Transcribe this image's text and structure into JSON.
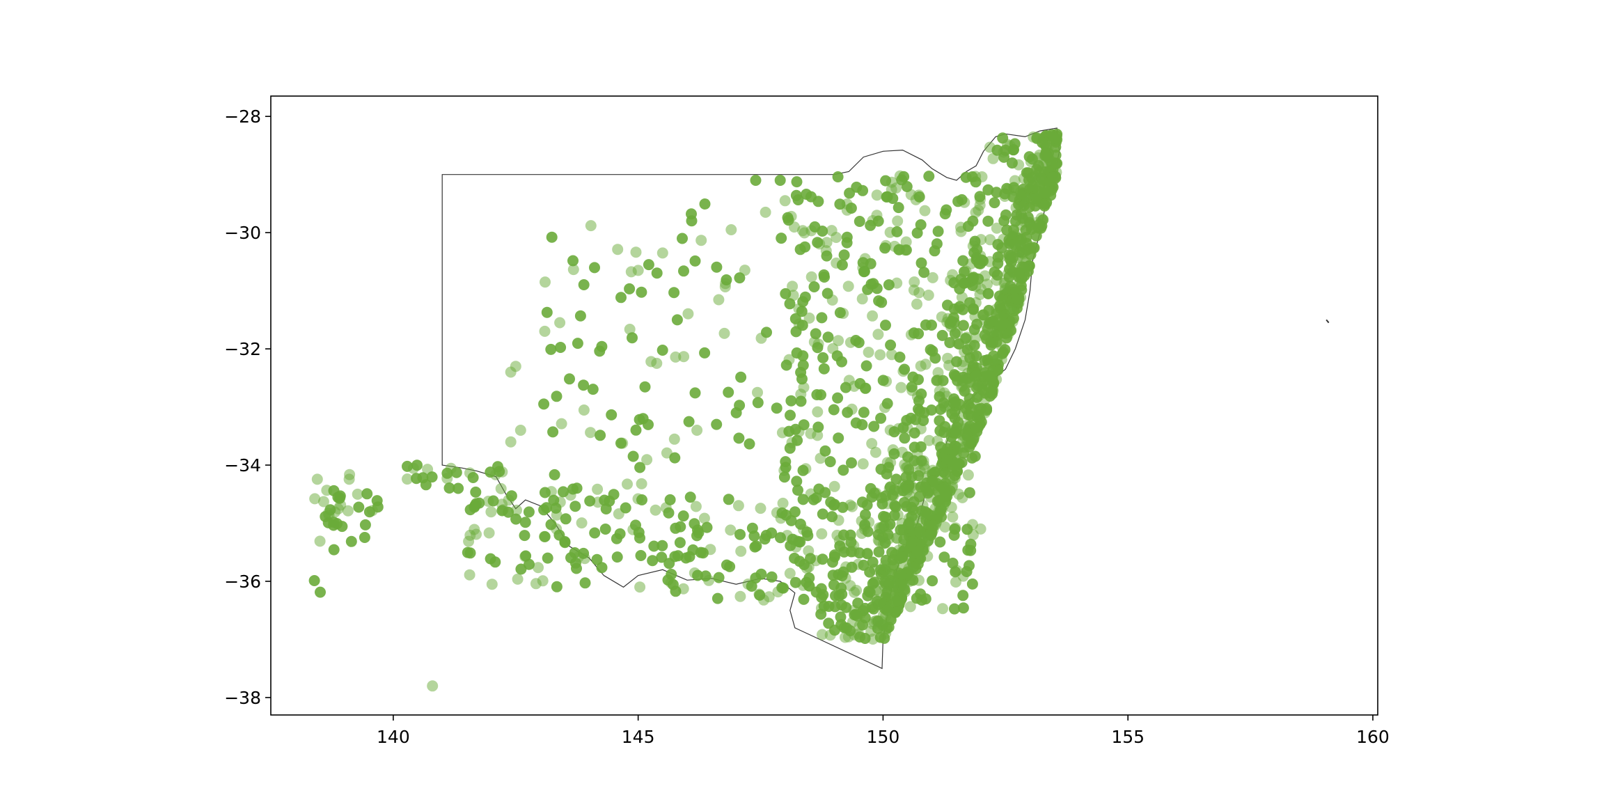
{
  "chart_data": {
    "type": "scatter",
    "title": "",
    "xlabel": "",
    "ylabel": "",
    "xlim": [
      137.5,
      160.1
    ],
    "ylim": [
      -38.3,
      -27.65
    ],
    "x_ticks": [
      140,
      145,
      150,
      155,
      160
    ],
    "y_ticks": [
      -28,
      -30,
      -32,
      -34,
      -36,
      -38
    ],
    "x_tick_labels": [
      "140",
      "145",
      "150",
      "155",
      "160"
    ],
    "y_tick_labels": [
      "−28",
      "−30",
      "−32",
      "−34",
      "−36",
      "−38"
    ],
    "grid": false,
    "legend": "none",
    "point_color": "#6aab3a",
    "boundary_color": "#333333",
    "boundary": [
      [
        141.0,
        -29.0
      ],
      [
        149.0,
        -29.0
      ],
      [
        149.3,
        -28.95
      ],
      [
        149.6,
        -28.7
      ],
      [
        150.0,
        -28.6
      ],
      [
        150.4,
        -28.58
      ],
      [
        150.8,
        -28.75
      ],
      [
        151.0,
        -28.9
      ],
      [
        151.3,
        -29.05
      ],
      [
        151.5,
        -29.1
      ],
      [
        151.7,
        -28.95
      ],
      [
        151.9,
        -28.85
      ],
      [
        152.05,
        -28.6
      ],
      [
        152.3,
        -28.35
      ],
      [
        152.5,
        -28.3
      ],
      [
        152.9,
        -28.35
      ],
      [
        153.2,
        -28.25
      ],
      [
        153.55,
        -28.2
      ],
      [
        153.6,
        -28.6
      ],
      [
        153.5,
        -29.0
      ],
      [
        153.35,
        -29.4
      ],
      [
        153.2,
        -30.0
      ],
      [
        153.05,
        -30.5
      ],
      [
        153.0,
        -31.0
      ],
      [
        152.9,
        -31.5
      ],
      [
        152.7,
        -32.0
      ],
      [
        152.5,
        -32.35
      ],
      [
        152.0,
        -32.7
      ],
      [
        151.6,
        -33.0
      ],
      [
        151.3,
        -33.6
      ],
      [
        151.2,
        -34.0
      ],
      [
        150.9,
        -34.4
      ],
      [
        150.7,
        -35.0
      ],
      [
        150.4,
        -35.5
      ],
      [
        150.2,
        -36.0
      ],
      [
        150.1,
        -36.5
      ],
      [
        150.0,
        -37.0
      ],
      [
        149.98,
        -37.5
      ],
      [
        148.2,
        -36.8
      ],
      [
        148.1,
        -36.5
      ],
      [
        148.2,
        -36.2
      ],
      [
        147.9,
        -36.0
      ],
      [
        147.5,
        -35.95
      ],
      [
        147.0,
        -36.05
      ],
      [
        146.5,
        -35.95
      ],
      [
        146.0,
        -35.98
      ],
      [
        145.5,
        -35.8
      ],
      [
        145.0,
        -35.9
      ],
      [
        144.7,
        -36.1
      ],
      [
        144.3,
        -35.9
      ],
      [
        144.0,
        -35.6
      ],
      [
        143.6,
        -35.4
      ],
      [
        143.3,
        -35.0
      ],
      [
        143.0,
        -34.7
      ],
      [
        142.7,
        -34.6
      ],
      [
        142.5,
        -34.75
      ],
      [
        142.3,
        -34.5
      ],
      [
        142.1,
        -34.2
      ],
      [
        141.7,
        -34.1
      ],
      [
        141.4,
        -34.05
      ],
      [
        141.0,
        -34.0
      ],
      [
        141.0,
        -29.0
      ]
    ],
    "island": [
      [
        159.05,
        -31.5
      ],
      [
        159.1,
        -31.55
      ]
    ]
  }
}
